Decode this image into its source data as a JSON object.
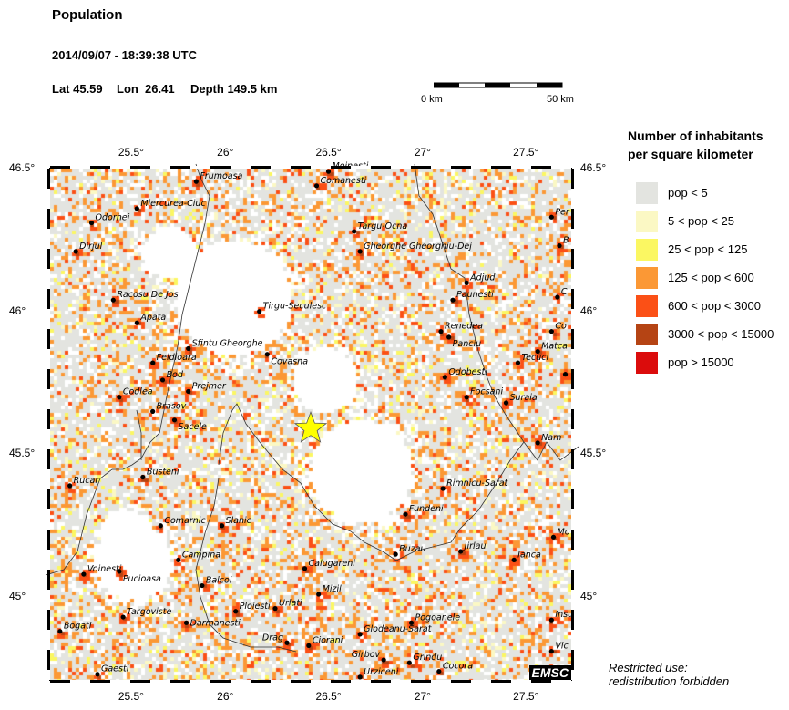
{
  "header": {
    "title": "Population",
    "datetime": "2014/09/07 - 18:39:38 UTC",
    "lat_label": "Lat 45.59",
    "lon_label": "Lon  26.41",
    "depth_label": "Depth 149.5 km"
  },
  "scale_bar": {
    "start_label": "0 km",
    "end_label": "50 km"
  },
  "map": {
    "lon_range": [
      25.09,
      27.73
    ],
    "lat_range": [
      44.71,
      46.5
    ],
    "lon_ticks": [
      "25.5°",
      "26°",
      "26.5°",
      "27°",
      "27.5°"
    ],
    "lat_ticks": [
      "46.5°",
      "46°",
      "45.5°",
      "45°"
    ],
    "epicenter": {
      "lat": 45.59,
      "lon": 26.41,
      "color": "#ffff00"
    },
    "watermark": "EMSC",
    "cities": [
      {
        "name": "Frumoasa",
        "lon": 25.83,
        "lat": 46.455
      },
      {
        "name": "Miercurea-Ciuc",
        "lon": 25.53,
        "lat": 46.36
      },
      {
        "name": "Odorhei",
        "lon": 25.3,
        "lat": 46.31
      },
      {
        "name": "Dirjul",
        "lon": 25.22,
        "lat": 46.21
      },
      {
        "name": "Racosu De Jos",
        "lon": 25.41,
        "lat": 46.04
      },
      {
        "name": "Apata",
        "lon": 25.53,
        "lat": 45.96
      },
      {
        "name": "Sfintu Gheorghe",
        "lon": 25.79,
        "lat": 45.87
      },
      {
        "name": "Feldioara",
        "lon": 25.61,
        "lat": 45.82
      },
      {
        "name": "Bod",
        "lon": 25.66,
        "lat": 45.76
      },
      {
        "name": "Prejmer",
        "lon": 25.79,
        "lat": 45.72
      },
      {
        "name": "Codlea",
        "lon": 25.44,
        "lat": 45.7
      },
      {
        "name": "Brasov",
        "lon": 25.61,
        "lat": 45.65
      },
      {
        "name": "Sacele",
        "lon": 25.72,
        "lat": 45.62
      },
      {
        "name": "Tirgu-Seculesc",
        "lon": 26.15,
        "lat": 46.0
      },
      {
        "name": "Covasna",
        "lon": 26.19,
        "lat": 45.85
      },
      {
        "name": "Moinesti",
        "lon": 26.5,
        "lat": 46.49
      },
      {
        "name": "Comanesti",
        "lon": 26.44,
        "lat": 46.44
      },
      {
        "name": "Targu-Ocna",
        "lon": 26.63,
        "lat": 46.28
      },
      {
        "name": "Gheorghe Gheorghiu-Dej",
        "lon": 26.66,
        "lat": 46.21
      },
      {
        "name": "Adjud",
        "lon": 27.2,
        "lat": 46.1
      },
      {
        "name": "Paunesti",
        "lon": 27.13,
        "lat": 46.04
      },
      {
        "name": "Renedea",
        "lon": 27.07,
        "lat": 45.93
      },
      {
        "name": "Panciu",
        "lon": 27.11,
        "lat": 45.91
      },
      {
        "name": "Odobesti",
        "lon": 27.09,
        "lat": 45.77
      },
      {
        "name": "Focsani",
        "lon": 27.2,
        "lat": 45.7
      },
      {
        "name": "Suraia",
        "lon": 27.4,
        "lat": 45.68
      },
      {
        "name": "Tecuci",
        "lon": 27.46,
        "lat": 45.82
      },
      {
        "name": "Matca",
        "lon": 27.56,
        "lat": 45.86
      },
      {
        "name": "Co",
        "lon": 27.63,
        "lat": 45.93
      },
      {
        "name": "Per",
        "lon": 27.63,
        "lat": 46.33
      },
      {
        "name": "B",
        "lon": 27.67,
        "lat": 46.23
      },
      {
        "name": "C",
        "lon": 27.66,
        "lat": 46.05
      },
      {
        "name": "",
        "lon": 27.7,
        "lat": 45.78
      },
      {
        "name": "Nam",
        "lon": 27.56,
        "lat": 45.54
      },
      {
        "name": "Rucar",
        "lon": 25.19,
        "lat": 45.39
      },
      {
        "name": "Busteni",
        "lon": 25.56,
        "lat": 45.42
      },
      {
        "name": "Comarnic",
        "lon": 25.65,
        "lat": 45.25
      },
      {
        "name": "Slanic",
        "lon": 25.96,
        "lat": 45.25
      },
      {
        "name": "Campina",
        "lon": 25.74,
        "lat": 45.13
      },
      {
        "name": "Voinesti",
        "lon": 25.26,
        "lat": 45.08
      },
      {
        "name": "Pucioasa",
        "lon": 25.44,
        "lat": 45.09
      },
      {
        "name": "Balcoi",
        "lon": 25.86,
        "lat": 45.04
      },
      {
        "name": "Targoviste",
        "lon": 25.46,
        "lat": 44.93
      },
      {
        "name": "Darmanesti",
        "lon": 25.78,
        "lat": 44.91
      },
      {
        "name": "Ploiesti",
        "lon": 26.03,
        "lat": 44.95
      },
      {
        "name": "Urlati",
        "lon": 26.23,
        "lat": 44.96
      },
      {
        "name": "Bogati",
        "lon": 25.14,
        "lat": 44.88
      },
      {
        "name": "Gaesti",
        "lon": 25.33,
        "lat": 44.73
      },
      {
        "name": "Drag",
        "lon": 26.29,
        "lat": 44.84
      },
      {
        "name": "Ciorani",
        "lon": 26.4,
        "lat": 44.83
      },
      {
        "name": "Calugareni",
        "lon": 26.38,
        "lat": 45.1
      },
      {
        "name": "Mizil",
        "lon": 26.45,
        "lat": 45.01
      },
      {
        "name": "Fundeni",
        "lon": 26.89,
        "lat": 45.29
      },
      {
        "name": "Rimnicu-Sarat",
        "lon": 27.08,
        "lat": 45.38
      },
      {
        "name": "Buzau",
        "lon": 26.84,
        "lat": 45.15
      },
      {
        "name": "Jirlau",
        "lon": 27.17,
        "lat": 45.16
      },
      {
        "name": "Ianca",
        "lon": 27.44,
        "lat": 45.13
      },
      {
        "name": "Mo",
        "lon": 27.64,
        "lat": 45.21
      },
      {
        "name": "Pogoanele",
        "lon": 26.92,
        "lat": 44.91
      },
      {
        "name": "Glodeanu-Sarat",
        "lon": 26.66,
        "lat": 44.87
      },
      {
        "name": "Girbov",
        "lon": 26.78,
        "lat": 44.78
      },
      {
        "name": "Grindu",
        "lon": 26.91,
        "lat": 44.77
      },
      {
        "name": "Cocora",
        "lon": 27.06,
        "lat": 44.74
      },
      {
        "name": "Urziceni",
        "lon": 26.66,
        "lat": 44.72
      },
      {
        "name": "Insu",
        "lon": 27.63,
        "lat": 44.92
      },
      {
        "name": "Vic",
        "lon": 27.63,
        "lat": 44.81
      }
    ]
  },
  "legend": {
    "title_line1": "Number of inhabitants",
    "title_line2": "per square kilometer",
    "items": [
      {
        "label": "pop < 5",
        "color": "#e3e4e0"
      },
      {
        "label": "5 < pop < 25",
        "color": "#fbf8c4"
      },
      {
        "label": "25 < pop < 125",
        "color": "#fbf762"
      },
      {
        "label": "125 < pop < 600",
        "color": "#fb9835"
      },
      {
        "label": "600 < pop < 3000",
        "color": "#fb5016"
      },
      {
        "label": "3000 < pop < 15000",
        "color": "#b54414"
      },
      {
        "label": "pop > 15000",
        "color": "#db0c0c"
      }
    ]
  },
  "footer": {
    "line1": "Restricted use:",
    "line2": "redistribution forbidden"
  }
}
